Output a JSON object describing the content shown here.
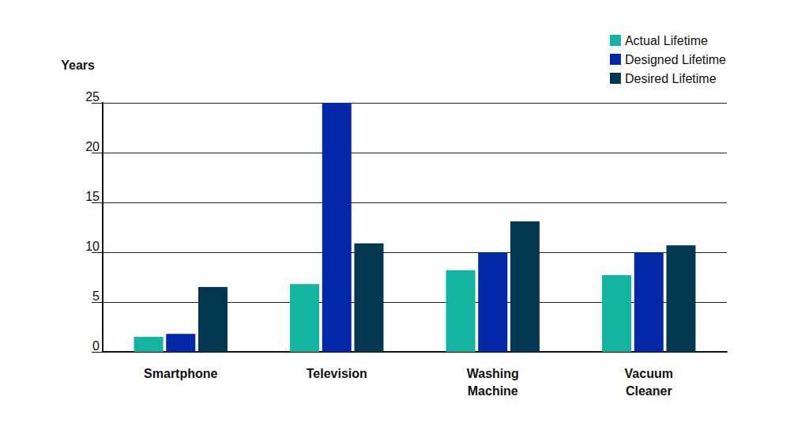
{
  "chart_data": {
    "type": "bar",
    "y_label": "Years",
    "categories": [
      "Smartphone",
      "Television",
      "Washing\nMachine",
      "Vacuum\nCleaner"
    ],
    "series": [
      {
        "name": "Actual Lifetime",
        "color": "#14b5a0",
        "values": [
          1.5,
          6.8,
          8.2,
          7.7
        ]
      },
      {
        "name": "Designed Lifetime",
        "color": "#0228a8",
        "values": [
          1.8,
          25,
          10,
          10
        ]
      },
      {
        "name": "Desired Lifetime",
        "color": "#033852",
        "values": [
          6.5,
          10.9,
          13.1,
          10.7
        ]
      }
    ],
    "ylim": [
      0,
      25
    ],
    "yticks": [
      0,
      5,
      10,
      15,
      20,
      25
    ],
    "grid": true,
    "legend": "top-right"
  }
}
